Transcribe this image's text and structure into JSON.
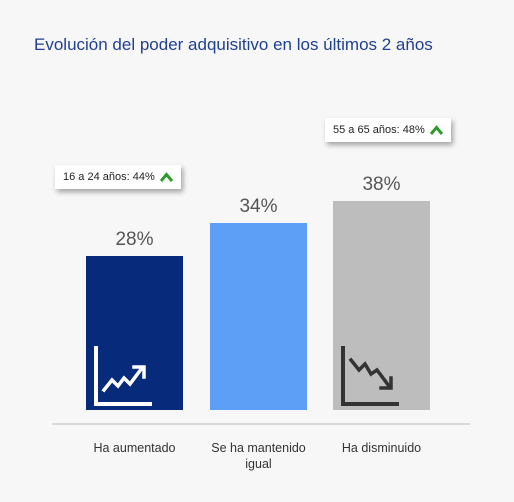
{
  "chart_data": {
    "type": "bar",
    "title": "Evolución del poder adquisitivo en los últimos 2 años",
    "categories": [
      [
        "Ha aumentado"
      ],
      [
        "Se ha mantenido",
        "igual"
      ],
      [
        "Ha disminuido"
      ]
    ],
    "values": [
      28,
      34,
      38
    ],
    "value_labels": [
      "28%",
      "34%",
      "38%"
    ],
    "ylim": [
      0,
      40
    ],
    "grid": false,
    "colors": [
      "#072a7a",
      "#5d9ff7",
      "#bdbdbd"
    ],
    "icons": [
      "trend-up-chart-icon",
      null,
      "trend-down-chart-icon"
    ],
    "annotations": [
      {
        "category": "Ha aumentado",
        "text": "16 a 24 años: 44%",
        "icon": "chevron-up-icon",
        "color": "#2e9a2e"
      },
      {
        "category": "Ha disminuido",
        "text": "55 a 65 años: 48%",
        "icon": "chevron-up-icon",
        "color": "#2e9a2e"
      }
    ]
  }
}
